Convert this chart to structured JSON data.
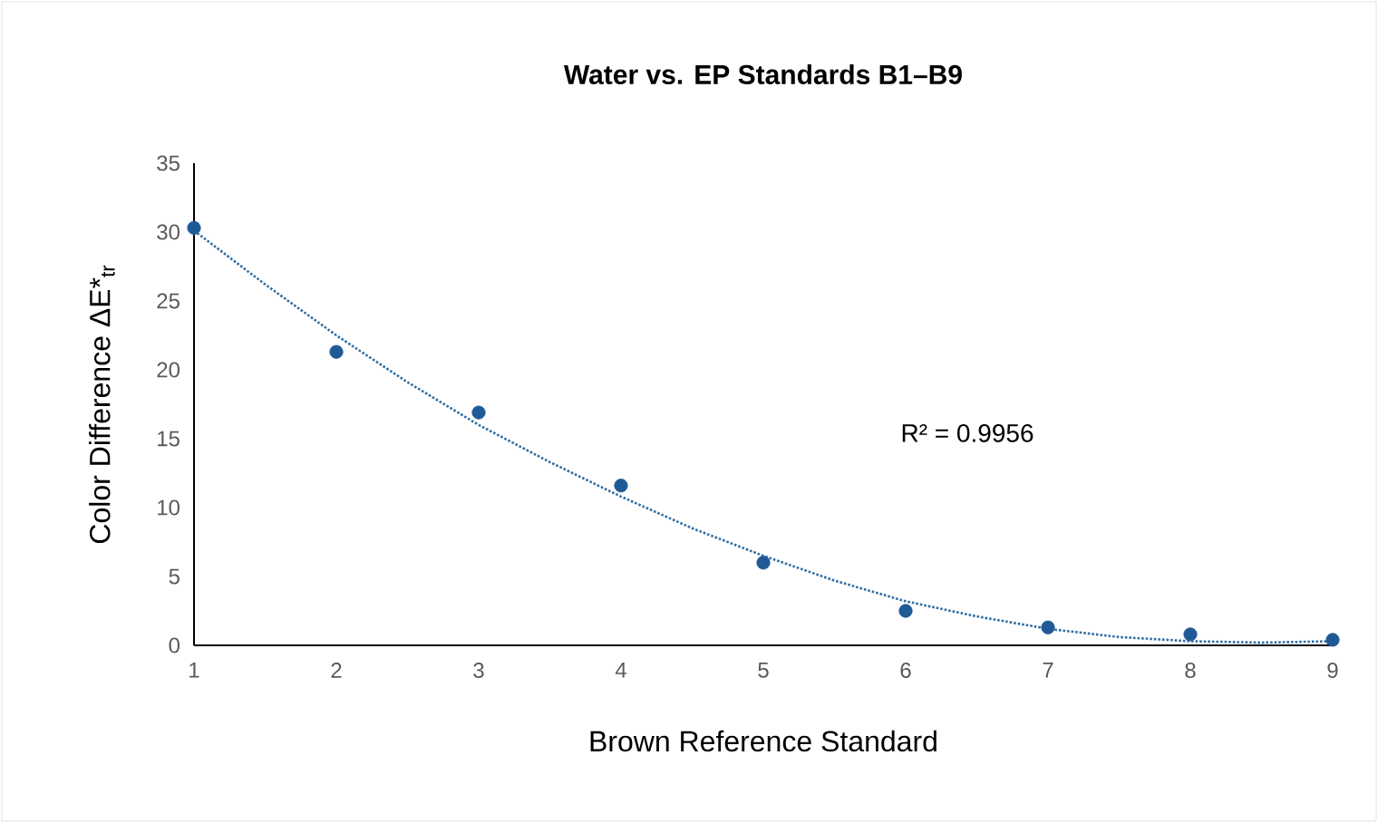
{
  "chart_data": {
    "type": "scatter",
    "title": "Water vs. EP Standards B1–B9",
    "xlabel": "Brown Reference Standard",
    "ylabel": "Color Difference ΔE*$_{tr}$",
    "x": [
      1,
      2,
      3,
      4,
      5,
      6,
      7,
      8,
      9
    ],
    "xlim": [
      1,
      9
    ],
    "xticks": [
      1,
      2,
      3,
      4,
      5,
      6,
      7,
      8,
      9
    ],
    "ylim": [
      0,
      35
    ],
    "yticks": [
      0,
      5,
      10,
      15,
      20,
      25,
      30,
      35
    ],
    "series": [
      {
        "marker": "circle",
        "color": "#1f5a96",
        "values": [
          30.3,
          21.3,
          16.9,
          11.6,
          6.0,
          2.5,
          1.3,
          0.8,
          0.4
        ]
      },
      {
        "type": "line",
        "marker": "none",
        "line_style": "dotted",
        "color": "#2e6da4",
        "x": [
          1,
          1.5,
          2,
          2.5,
          3,
          3.5,
          4,
          4.5,
          5,
          5.5,
          6,
          6.5,
          7,
          7.5,
          8,
          8.5,
          9
        ],
        "values": [
          30.1,
          26.2,
          22.5,
          19.1,
          16.0,
          13.3,
          10.8,
          8.5,
          6.5,
          4.7,
          3.2,
          2.1,
          1.2,
          0.6,
          0.3,
          0.2,
          0.3
        ]
      }
    ],
    "annotations": [
      "R² = 0.9956"
    ]
  }
}
